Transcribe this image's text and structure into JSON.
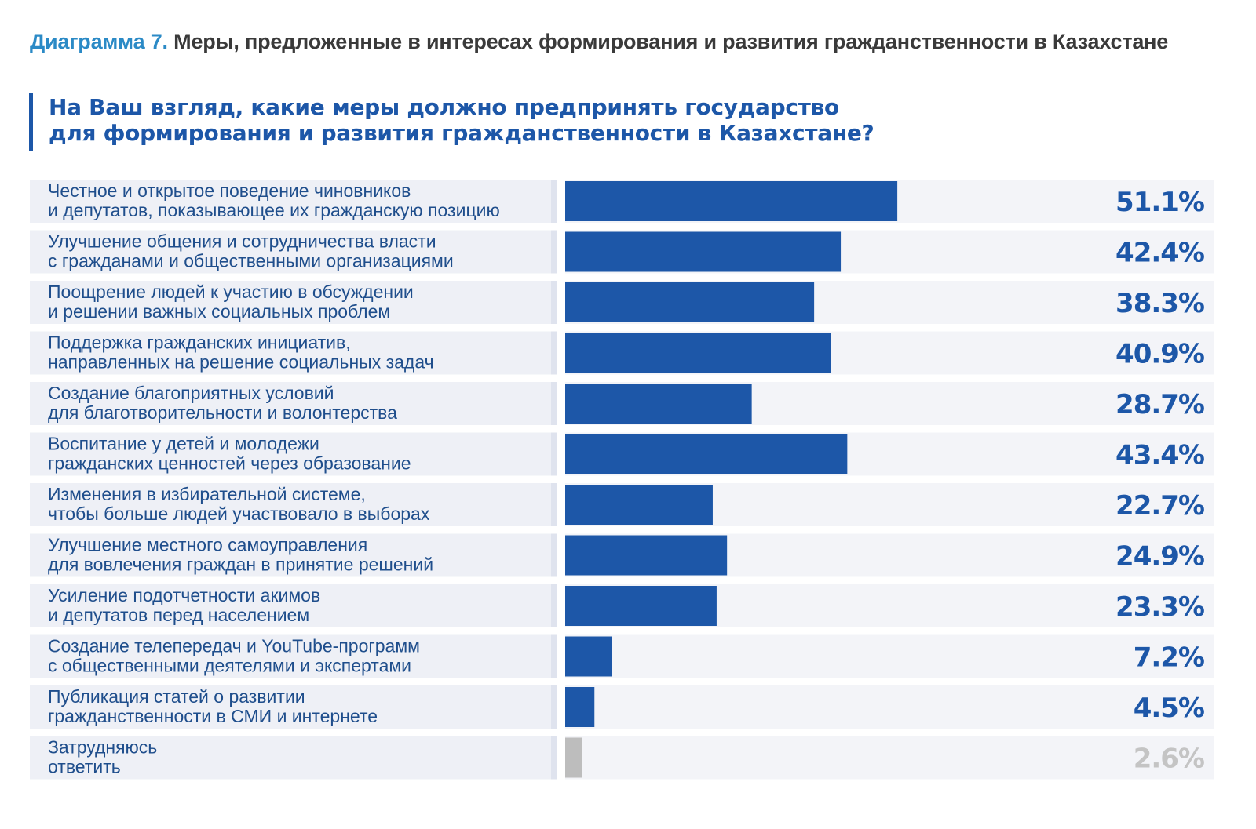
{
  "caption": {
    "number": "Диаграмма 7.",
    "text": "Меры, предложенные в интересах формирования и развития гражданственности в Казахстане"
  },
  "question": {
    "line1": "На Ваш взгляд, какие меры должно предпринять государство",
    "line2": "для формирования и развития гражданственности в Казахстане?"
  },
  "colors": {
    "bar": "#1d57a8",
    "bar_muted": "#bdbdbd",
    "value_text": "#1d57a8",
    "value_text_muted": "#c4c4c4",
    "row_background": "#eef0f6",
    "label_text": "#1f4e8c"
  },
  "chart_data": {
    "type": "bar",
    "orientation": "horizontal",
    "title": "",
    "xlabel": "",
    "ylabel": "",
    "xlim": [
      0,
      100
    ],
    "grid": false,
    "unit": "%",
    "categories": [
      [
        "Честное и открытое поведение чиновников",
        "и депутатов, показывающее их гражданскую позицию"
      ],
      [
        "Улучшение общения и сотрудничества власти",
        "с гражданами и общественными организациями"
      ],
      [
        "Поощрение людей к участию в обсуждении",
        "и решении важных социальных проблем"
      ],
      [
        "Поддержка гражданских инициатив,",
        "направленных на решение социальных задач"
      ],
      [
        "Создание благоприятных условий",
        "для благотворительности и волонтерства"
      ],
      [
        "Воспитание у детей и молодежи",
        "гражданских ценностей через образование"
      ],
      [
        "Изменения в избирательной системе,",
        "чтобы больше людей участвовало в выборах"
      ],
      [
        "Улучшение местного самоуправления",
        "для вовлечения граждан в принятие решений"
      ],
      [
        "Усиление подотчетности акимов",
        "и депутатов перед населением"
      ],
      [
        "Создание телепередач и YouTube-программ",
        "с общественными деятелями и экспертами"
      ],
      [
        "Публикация статей о развитии",
        "гражданственности в СМИ и интернете"
      ],
      [
        "Затрудняюсь",
        "ответить"
      ]
    ],
    "values": [
      51.1,
      42.4,
      38.3,
      40.9,
      28.7,
      43.4,
      22.7,
      24.9,
      23.3,
      7.2,
      4.5,
      2.6
    ],
    "value_labels": [
      "51.1%",
      "42.4%",
      "38.3%",
      "40.9%",
      "28.7%",
      "43.4%",
      "22.7%",
      "24.9%",
      "23.3%",
      "7.2%",
      "4.5%",
      "2.6%"
    ],
    "muted_last": true
  }
}
